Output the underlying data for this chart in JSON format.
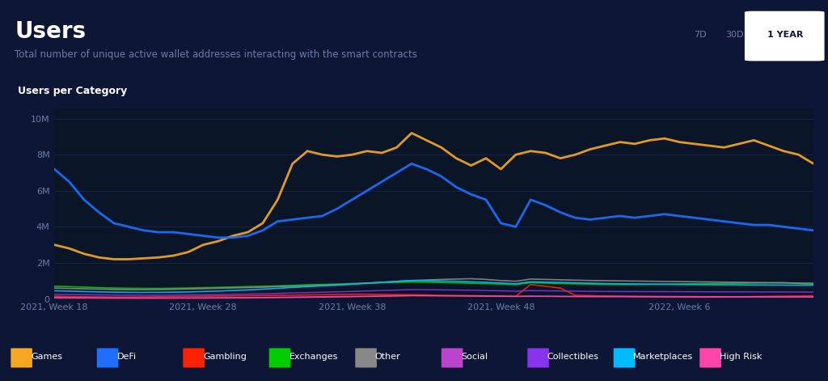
{
  "bg_outer": "#0d1635",
  "bg_panel": "#0a1628",
  "title": "Users",
  "subtitle": "Total number of unique active wallet addresses interacting with the smart contracts",
  "chart_label": "Users per Category",
  "buttons": [
    "7D",
    "30D",
    "1 YEAR"
  ],
  "active_button": "1 YEAR",
  "x_ticks": [
    "2021, Week 18",
    "2021, Week 28",
    "2021, Week 38",
    "2021, Week 48",
    "2022, Week 6"
  ],
  "y_ticks": [
    "0",
    "2M",
    "4M",
    "6M",
    "8M",
    "10M"
  ],
  "y_max": 10500000,
  "legend": [
    {
      "label": "Games",
      "color": "#f5a623"
    },
    {
      "label": "DeFi",
      "color": "#1e6fff"
    },
    {
      "label": "Gambling",
      "color": "#ff2200"
    },
    {
      "label": "Exchanges",
      "color": "#00cc00"
    },
    {
      "label": "Other",
      "color": "#888888"
    },
    {
      "label": "Social",
      "color": "#bb44cc"
    },
    {
      "label": "Collectibles",
      "color": "#8833ee"
    },
    {
      "label": "Marketplaces",
      "color": "#00bbff"
    },
    {
      "label": "High Risk",
      "color": "#ff44aa"
    }
  ],
  "n_points": 52,
  "games": [
    3000000,
    2800000,
    2500000,
    2300000,
    2200000,
    2200000,
    2250000,
    2300000,
    2400000,
    2600000,
    3000000,
    3200000,
    3500000,
    3700000,
    4200000,
    5500000,
    7500000,
    8200000,
    8000000,
    7900000,
    8000000,
    8200000,
    8100000,
    8400000,
    9200000,
    8800000,
    8400000,
    7800000,
    7400000,
    7800000,
    7200000,
    8000000,
    8200000,
    8100000,
    7800000,
    8000000,
    8300000,
    8500000,
    8700000,
    8600000,
    8800000,
    8900000,
    8700000,
    8600000,
    8500000,
    8400000,
    8600000,
    8800000,
    8500000,
    8200000,
    8000000,
    7500000
  ],
  "defi": [
    7200000,
    6500000,
    5500000,
    4800000,
    4200000,
    4000000,
    3800000,
    3700000,
    3700000,
    3600000,
    3500000,
    3400000,
    3400000,
    3500000,
    3800000,
    4300000,
    4400000,
    4500000,
    4600000,
    5000000,
    5500000,
    6000000,
    6500000,
    7000000,
    7500000,
    7200000,
    6800000,
    6200000,
    5800000,
    5500000,
    4200000,
    4000000,
    5500000,
    5200000,
    4800000,
    4500000,
    4400000,
    4500000,
    4600000,
    4500000,
    4600000,
    4700000,
    4600000,
    4500000,
    4400000,
    4300000,
    4200000,
    4100000,
    4100000,
    4000000,
    3900000,
    3800000
  ],
  "gambling": [
    150000,
    130000,
    120000,
    110000,
    100000,
    100000,
    110000,
    120000,
    130000,
    140000,
    150000,
    160000,
    170000,
    180000,
    190000,
    200000,
    210000,
    220000,
    230000,
    240000,
    250000,
    260000,
    250000,
    240000,
    230000,
    220000,
    200000,
    190000,
    180000,
    170000,
    160000,
    150000,
    800000,
    700000,
    600000,
    200000,
    180000,
    160000,
    150000,
    140000,
    130000,
    120000,
    110000,
    100000,
    100000,
    110000,
    120000,
    130000,
    140000,
    150000,
    160000,
    170000
  ],
  "exchanges": [
    700000,
    680000,
    650000,
    620000,
    600000,
    590000,
    580000,
    580000,
    590000,
    600000,
    620000,
    640000,
    660000,
    680000,
    700000,
    720000,
    750000,
    780000,
    800000,
    820000,
    850000,
    880000,
    900000,
    920000,
    940000,
    930000,
    910000,
    890000,
    870000,
    850000,
    820000,
    800000,
    900000,
    880000,
    860000,
    840000,
    820000,
    810000,
    800000,
    800000,
    810000,
    820000,
    830000,
    840000,
    850000,
    860000,
    870000,
    880000,
    890000,
    900000,
    850000,
    820000
  ],
  "other": [
    600000,
    580000,
    560000,
    540000,
    520000,
    510000,
    510000,
    520000,
    530000,
    550000,
    570000,
    590000,
    610000,
    630000,
    650000,
    680000,
    700000,
    720000,
    750000,
    780000,
    820000,
    870000,
    920000,
    970000,
    1020000,
    1050000,
    1080000,
    1100000,
    1120000,
    1080000,
    1020000,
    980000,
    1100000,
    1080000,
    1060000,
    1040000,
    1020000,
    1010000,
    1000000,
    990000,
    980000,
    970000,
    960000,
    950000,
    940000,
    930000,
    920000,
    910000,
    900000,
    890000,
    880000,
    870000
  ],
  "social": [
    80000,
    75000,
    70000,
    65000,
    60000,
    58000,
    57000,
    57000,
    58000,
    60000,
    63000,
    67000,
    72000,
    78000,
    85000,
    95000,
    105000,
    115000,
    125000,
    135000,
    145000,
    155000,
    165000,
    175000,
    185000,
    180000,
    175000,
    170000,
    165000,
    160000,
    155000,
    150000,
    160000,
    155000,
    150000,
    148000,
    145000,
    143000,
    142000,
    140000,
    138000,
    136000,
    134000,
    132000,
    130000,
    128000,
    126000,
    124000,
    122000,
    120000,
    118000,
    116000
  ],
  "collectibles": [
    250000,
    240000,
    230000,
    220000,
    210000,
    205000,
    203000,
    205000,
    210000,
    218000,
    228000,
    240000,
    254000,
    270000,
    288000,
    308000,
    330000,
    350000,
    370000,
    390000,
    415000,
    440000,
    465000,
    490000,
    515000,
    510000,
    500000,
    490000,
    478000,
    465000,
    448000,
    430000,
    460000,
    450000,
    440000,
    430000,
    420000,
    415000,
    410000,
    408000,
    405000,
    403000,
    400000,
    398000,
    395000,
    393000,
    390000,
    388000,
    385000,
    383000,
    380000,
    375000
  ],
  "marketplaces": [
    450000,
    430000,
    410000,
    390000,
    375000,
    365000,
    360000,
    365000,
    375000,
    390000,
    410000,
    435000,
    465000,
    500000,
    540000,
    585000,
    635000,
    680000,
    725000,
    770000,
    820000,
    870000,
    920000,
    970000,
    1020000,
    1010000,
    995000,
    975000,
    950000,
    920000,
    880000,
    840000,
    950000,
    930000,
    910000,
    890000,
    870000,
    850000,
    840000,
    830000,
    820000,
    810000,
    800000,
    795000,
    790000,
    785000,
    780000,
    775000,
    770000,
    765000,
    760000,
    755000
  ],
  "high_risk": [
    50000,
    48000,
    46000,
    44000,
    42000,
    40000,
    39000,
    39000,
    40000,
    42000,
    45000,
    48000,
    52000,
    57000,
    63000,
    70000,
    78000,
    87000,
    97000,
    108000,
    120000,
    133000,
    147000,
    162000,
    178000,
    175000,
    170000,
    164000,
    157000,
    149000,
    140000,
    130000,
    140000,
    135000,
    130000,
    125000,
    120000,
    118000,
    116000,
    114000,
    112000,
    110000,
    108000,
    107000,
    106000,
    105000,
    104000,
    103000,
    102000,
    101000,
    100000,
    99000
  ]
}
